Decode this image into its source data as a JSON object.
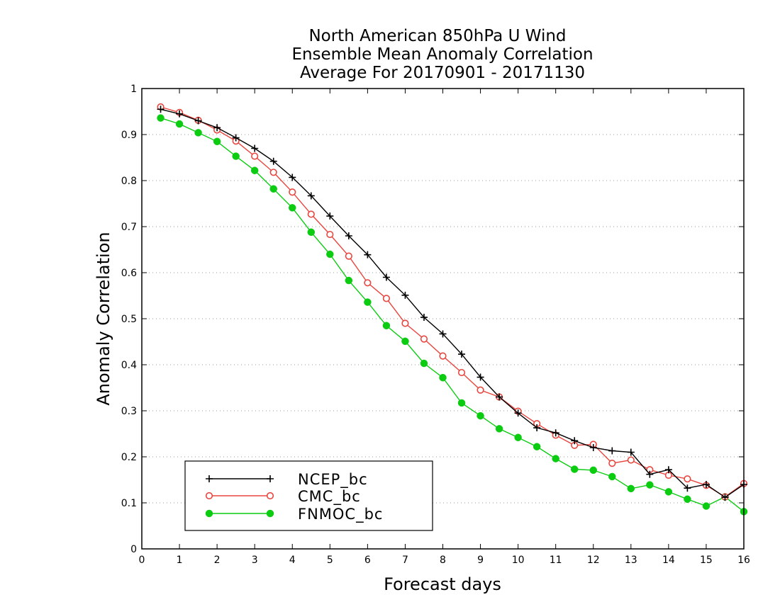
{
  "chart_data": {
    "type": "line",
    "title": [
      "North American 850hPa U Wind",
      "Ensemble Mean Anomaly Correlation",
      "Average For 20170901 - 20171130"
    ],
    "xlabel": "Forecast days",
    "ylabel": "Anomaly Correlation",
    "xlim": [
      0,
      16
    ],
    "ylim": [
      0,
      1
    ],
    "xticks": [
      "0",
      "1",
      "2",
      "3",
      "4",
      "5",
      "6",
      "7",
      "8",
      "9",
      "10",
      "11",
      "12",
      "13",
      "14",
      "15",
      "16"
    ],
    "yticks": [
      "0",
      "0.1",
      "0.2",
      "0.3",
      "0.4",
      "0.5",
      "0.6",
      "0.7",
      "0.8",
      "0.9",
      "1"
    ],
    "grid": "horizontal dotted",
    "legend_position": "bottom-left",
    "x": [
      0.5,
      1,
      1.5,
      2,
      2.5,
      3,
      3.5,
      4,
      4.5,
      5,
      5.5,
      6,
      6.5,
      7,
      7.5,
      8,
      8.5,
      9,
      9.5,
      10,
      10.5,
      11,
      11.5,
      12,
      12.5,
      13,
      13.5,
      14,
      14.5,
      15,
      15.5,
      16
    ],
    "series": [
      {
        "name": "NCEP_bc",
        "color": "#000000",
        "marker": "plus",
        "values": [
          0.955,
          0.945,
          0.93,
          0.915,
          0.893,
          0.87,
          0.842,
          0.807,
          0.767,
          0.723,
          0.68,
          0.639,
          0.59,
          0.551,
          0.503,
          0.467,
          0.423,
          0.373,
          0.33,
          0.295,
          0.263,
          0.252,
          0.235,
          0.22,
          0.213,
          0.21,
          0.162,
          0.172,
          0.132,
          0.14,
          0.112,
          0.14
        ]
      },
      {
        "name": "CMC_bc",
        "color": "#e8463f",
        "marker": "open-circle",
        "values": [
          0.96,
          0.948,
          0.931,
          0.91,
          0.886,
          0.853,
          0.818,
          0.775,
          0.727,
          0.683,
          0.636,
          0.578,
          0.544,
          0.49,
          0.456,
          0.419,
          0.383,
          0.345,
          0.33,
          0.299,
          0.272,
          0.247,
          0.225,
          0.227,
          0.186,
          0.193,
          0.172,
          0.16,
          0.152,
          0.138,
          0.113,
          0.142
        ]
      },
      {
        "name": "FNMOC_bc",
        "color": "#0ccc12",
        "marker": "filled-circle",
        "values": [
          0.936,
          0.923,
          0.904,
          0.885,
          0.853,
          0.822,
          0.782,
          0.741,
          0.688,
          0.64,
          0.583,
          0.536,
          0.485,
          0.451,
          0.403,
          0.372,
          0.317,
          0.289,
          0.261,
          0.242,
          0.222,
          0.196,
          0.173,
          0.171,
          0.157,
          0.131,
          0.139,
          0.124,
          0.108,
          0.093,
          0.113,
          0.081
        ]
      }
    ]
  }
}
